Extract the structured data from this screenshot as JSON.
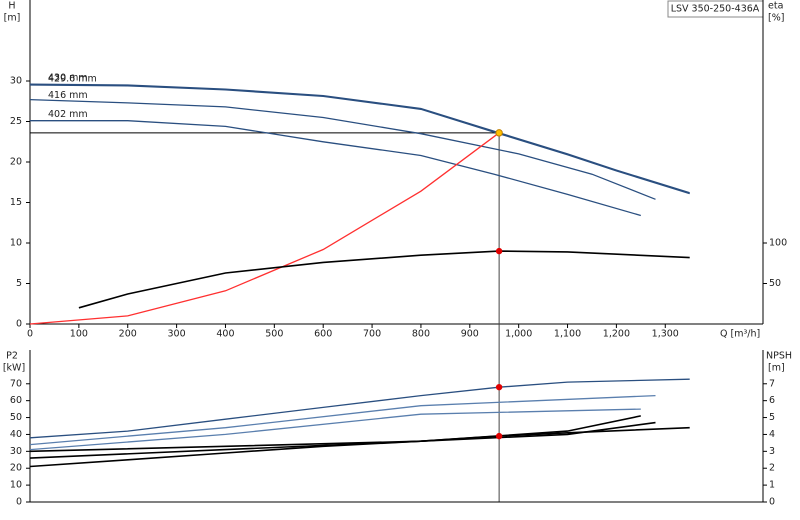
{
  "chart_data": [
    {
      "type": "line",
      "model": "LSV 350-250-436A",
      "y_label": "H",
      "y_unit": "[m]",
      "y2_label": "eta",
      "y2_unit": "[%]",
      "x_label": "Q [m³/h]",
      "xlim": [
        0,
        1500
      ],
      "xticks": [
        0,
        100,
        200,
        300,
        400,
        500,
        600,
        700,
        800,
        900,
        {
          "value": 1000,
          "label": "1,000"
        },
        {
          "value": 1100,
          "label": "1,100"
        },
        {
          "value": 1200,
          "label": "1,200"
        },
        {
          "value": 1300,
          "label": "1,300"
        }
      ],
      "ylim": [
        0,
        40
      ],
      "yticks": [
        0,
        5,
        10,
        15,
        20,
        25,
        30
      ],
      "y2lim": [
        0,
        400
      ],
      "y2ticks": [
        50,
        100
      ],
      "series": [
        {
          "name": "430 mm",
          "color": "#2a4f80",
          "x": [
            0,
            200,
            400,
            600,
            800,
            960,
            1100,
            1200,
            1350
          ],
          "values": [
            29.6,
            29.5,
            29.0,
            28.2,
            26.6,
            23.6,
            21.0,
            19.0,
            16.2
          ]
        },
        {
          "name": "429.6 mm",
          "color": "#2a4f80",
          "x": [
            0,
            200,
            400,
            600,
            800,
            960,
            1100,
            1200,
            1350
          ],
          "values": [
            29.5,
            29.4,
            28.9,
            28.1,
            26.5,
            23.5,
            20.9,
            18.9,
            16.1
          ]
        },
        {
          "name": "416 mm",
          "color": "#2a4f80",
          "x": [
            0,
            200,
            400,
            600,
            800,
            1000,
            1150,
            1280
          ],
          "values": [
            27.7,
            27.3,
            26.8,
            25.5,
            23.5,
            21.0,
            18.5,
            15.4
          ]
        },
        {
          "name": "402 mm",
          "color": "#2a4f80",
          "x": [
            0,
            200,
            400,
            600,
            800,
            950,
            1100,
            1250
          ],
          "values": [
            25.1,
            25.1,
            24.4,
            22.5,
            20.8,
            18.5,
            16.0,
            13.4
          ]
        },
        {
          "color": "#ff3030",
          "x": [
            0,
            200,
            400,
            600,
            800,
            960
          ],
          "values": [
            0,
            1.0,
            4.1,
            9.2,
            16.4,
            23.6
          ]
        },
        {
          "color": "#000000",
          "axis": "y2",
          "x": [
            100,
            200,
            400,
            600,
            800,
            960,
            1100,
            1350
          ],
          "values": [
            20,
            37,
            63,
            76,
            85,
            90,
            89,
            82
          ]
        }
      ],
      "points": [
        {
          "x": 960,
          "y": 23.6,
          "color": "#ffc000",
          "guide": true
        },
        {
          "x": 960,
          "y": 90,
          "axis": "y2",
          "color": "#e00000"
        }
      ]
    },
    {
      "type": "line",
      "y_label": "P2",
      "y_unit": "[kW]",
      "y2_label": "NPSH",
      "y2_unit": "[m]",
      "xlim": [
        0,
        1500
      ],
      "ylim": [
        0,
        90
      ],
      "yticks": [
        0,
        10,
        20,
        30,
        40,
        50,
        60,
        70
      ],
      "y2lim": [
        0,
        9
      ],
      "y2ticks": [
        0,
        1,
        2,
        3,
        4,
        5,
        6,
        7
      ],
      "series": [
        {
          "color": "#2a4f80",
          "x": [
            0,
            200,
            400,
            600,
            800,
            960,
            1100,
            1350
          ],
          "values": [
            38,
            42,
            49,
            56,
            63,
            68,
            71,
            72.7
          ]
        },
        {
          "color": "#5a7fae",
          "x": [
            0,
            400,
            800,
            1280
          ],
          "values": [
            34,
            44,
            57,
            63
          ]
        },
        {
          "color": "#5a7fae",
          "x": [
            0,
            400,
            800,
            1250
          ],
          "values": [
            31,
            40,
            52,
            55
          ]
        },
        {
          "color": "#000000",
          "axis": "y2",
          "x": [
            0,
            200,
            400,
            600,
            800,
            960,
            1100,
            1350
          ],
          "values": [
            2.1,
            2.5,
            2.9,
            3.3,
            3.6,
            3.9,
            4.1,
            4.4
          ]
        },
        {
          "color": "#000000",
          "axis": "y2",
          "x": [
            0,
            400,
            800,
            1100,
            1280
          ],
          "values": [
            3.0,
            3.3,
            3.6,
            4.0,
            4.7
          ]
        },
        {
          "color": "#000000",
          "axis": "y2",
          "x": [
            0,
            400,
            800,
            1100,
            1250
          ],
          "values": [
            2.6,
            3.1,
            3.6,
            4.2,
            5.1
          ]
        }
      ],
      "points": [
        {
          "x": 960,
          "y": 68,
          "color": "#e00000"
        },
        {
          "x": 960,
          "y": 3.9,
          "axis": "y2",
          "color": "#e00000"
        }
      ]
    }
  ]
}
